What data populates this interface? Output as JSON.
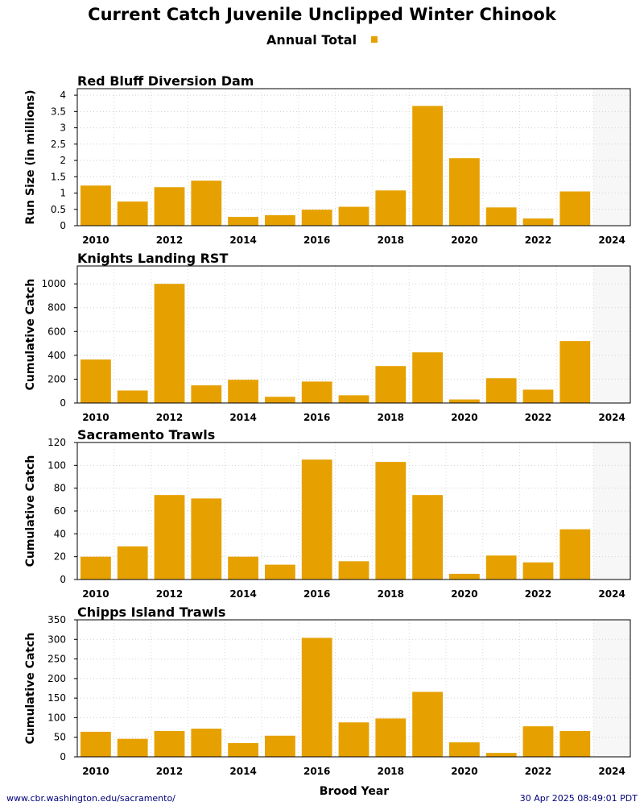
{
  "title": "Current Catch Juvenile Unclipped Winter Chinook",
  "legend": {
    "label": "Annual Total",
    "color": "#E6A100"
  },
  "footer": {
    "url": "www.cbr.washington.edu/sacramento/",
    "timestamp": "30 Apr 2025 08:49:01 PDT"
  },
  "chart_data": [
    {
      "type": "bar",
      "title": "Red Bluff Diversion Dam",
      "ylabel": "Run Size (in millions)",
      "xlabel": "Brood Year",
      "categories": [
        2010,
        2011,
        2012,
        2013,
        2014,
        2015,
        2016,
        2017,
        2018,
        2019,
        2020,
        2021,
        2022,
        2023,
        2024
      ],
      "xticks": [
        "2010",
        "2012",
        "2014",
        "2016",
        "2018",
        "2020",
        "2022",
        "2024"
      ],
      "values": [
        1.23,
        0.74,
        1.18,
        1.38,
        0.27,
        0.32,
        0.49,
        0.58,
        1.08,
        3.67,
        2.07,
        0.56,
        0.22,
        1.05,
        null
      ],
      "ylim": [
        0,
        4.2
      ],
      "yticks": [
        0,
        0.5,
        1,
        1.5,
        2,
        2.5,
        3,
        3.5,
        4
      ],
      "ytick_labels": [
        "0",
        "0.5",
        "1",
        "1.5",
        "2",
        "2.5",
        "3",
        "3.5",
        "4"
      ],
      "shaded_category": 2024,
      "grid": true
    },
    {
      "type": "bar",
      "title": "Knights Landing RST",
      "ylabel": "Cumulative Catch",
      "xlabel": "Brood Year",
      "categories": [
        2010,
        2011,
        2012,
        2013,
        2014,
        2015,
        2016,
        2017,
        2018,
        2019,
        2020,
        2021,
        2022,
        2023,
        2024
      ],
      "xticks": [
        "2010",
        "2012",
        "2014",
        "2016",
        "2018",
        "2020",
        "2022",
        "2024"
      ],
      "values": [
        365,
        105,
        1000,
        148,
        195,
        52,
        180,
        65,
        310,
        425,
        30,
        208,
        112,
        520,
        null
      ],
      "ylim": [
        0,
        1150
      ],
      "yticks": [
        0,
        200,
        400,
        600,
        800,
        1000
      ],
      "ytick_labels": [
        "0",
        "200",
        "400",
        "600",
        "800",
        "1000"
      ],
      "shaded_category": 2024,
      "grid": true
    },
    {
      "type": "bar",
      "title": "Sacramento Trawls",
      "ylabel": "Cumulative Catch",
      "xlabel": "Brood Year",
      "categories": [
        2010,
        2011,
        2012,
        2013,
        2014,
        2015,
        2016,
        2017,
        2018,
        2019,
        2020,
        2021,
        2022,
        2023,
        2024
      ],
      "xticks": [
        "2010",
        "2012",
        "2014",
        "2016",
        "2018",
        "2020",
        "2022",
        "2024"
      ],
      "values": [
        20,
        29,
        74,
        71,
        20,
        13,
        105,
        16,
        103,
        74,
        5,
        21,
        15,
        44,
        null
      ],
      "ylim": [
        0,
        120
      ],
      "yticks": [
        0,
        20,
        40,
        60,
        80,
        100,
        120
      ],
      "ytick_labels": [
        "0",
        "20",
        "40",
        "60",
        "80",
        "100",
        "120"
      ],
      "shaded_category": 2024,
      "grid": true
    },
    {
      "type": "bar",
      "title": "Chipps Island Trawls",
      "ylabel": "Cumulative Catch",
      "xlabel": "Brood Year",
      "categories": [
        2010,
        2011,
        2012,
        2013,
        2014,
        2015,
        2016,
        2017,
        2018,
        2019,
        2020,
        2021,
        2022,
        2023,
        2024
      ],
      "xticks": [
        "2010",
        "2012",
        "2014",
        "2016",
        "2018",
        "2020",
        "2022",
        "2024"
      ],
      "values": [
        64,
        46,
        66,
        72,
        35,
        54,
        304,
        88,
        98,
        166,
        37,
        10,
        78,
        66,
        null
      ],
      "ylim": [
        0,
        350
      ],
      "yticks": [
        0,
        50,
        100,
        150,
        200,
        250,
        300,
        350
      ],
      "ytick_labels": [
        "0",
        "50",
        "100",
        "150",
        "200",
        "250",
        "300",
        "350"
      ],
      "shaded_category": 2024,
      "grid": true
    }
  ]
}
